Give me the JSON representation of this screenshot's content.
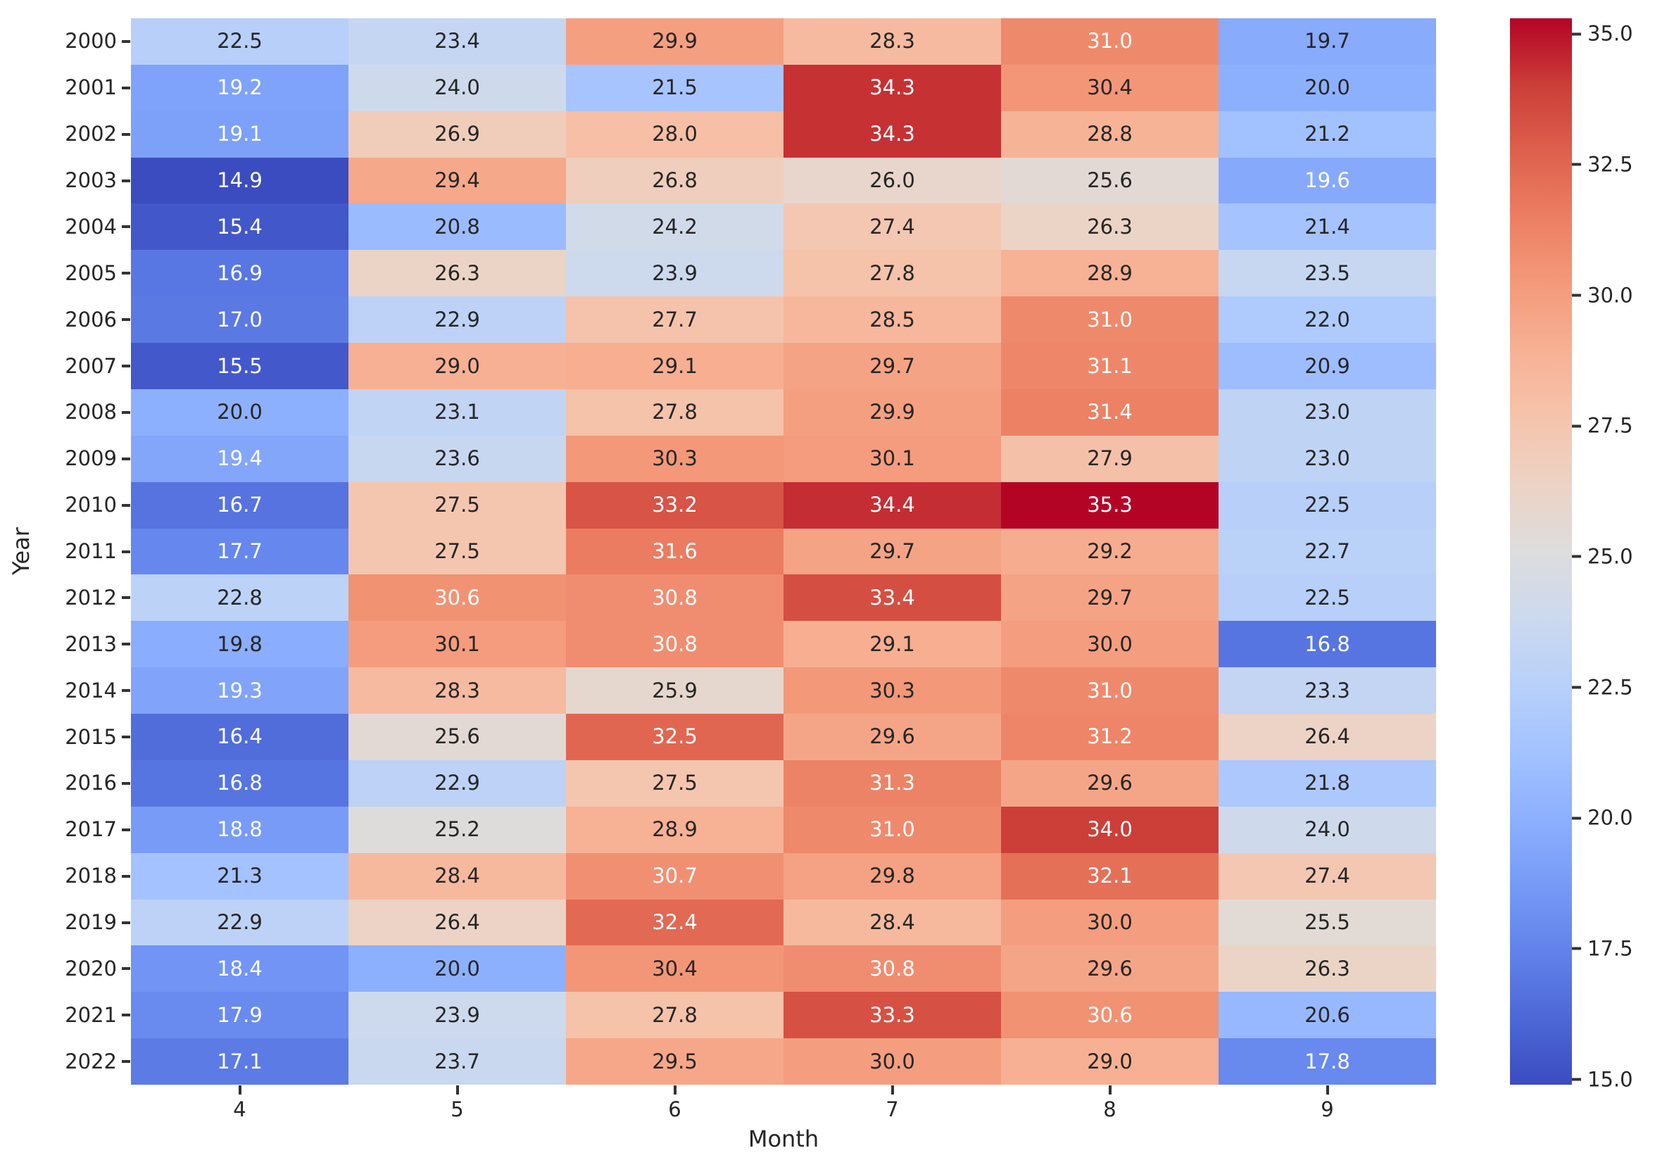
{
  "chart_data": {
    "type": "heatmap",
    "title": "",
    "xlabel": "Month",
    "ylabel": "Year",
    "x_categories": [
      "4",
      "5",
      "6",
      "7",
      "8",
      "9"
    ],
    "y_categories": [
      "2000",
      "2001",
      "2002",
      "2003",
      "2004",
      "2005",
      "2006",
      "2007",
      "2008",
      "2009",
      "2010",
      "2011",
      "2012",
      "2013",
      "2014",
      "2015",
      "2016",
      "2017",
      "2018",
      "2019",
      "2020",
      "2021",
      "2022"
    ],
    "values": [
      [
        22.5,
        23.4,
        29.9,
        28.3,
        31.0,
        19.7
      ],
      [
        19.2,
        24.0,
        21.5,
        34.3,
        30.4,
        20.0
      ],
      [
        19.1,
        26.9,
        28.0,
        34.3,
        28.8,
        21.2
      ],
      [
        14.9,
        29.4,
        26.8,
        26.0,
        25.6,
        19.6
      ],
      [
        15.4,
        20.8,
        24.2,
        27.4,
        26.3,
        21.4
      ],
      [
        16.9,
        26.3,
        23.9,
        27.8,
        28.9,
        23.5
      ],
      [
        17.0,
        22.9,
        27.7,
        28.5,
        31.0,
        22.0
      ],
      [
        15.5,
        29.0,
        29.1,
        29.7,
        31.1,
        20.9
      ],
      [
        20.0,
        23.1,
        27.8,
        29.9,
        31.4,
        23.0
      ],
      [
        19.4,
        23.6,
        30.3,
        30.1,
        27.9,
        23.0
      ],
      [
        16.7,
        27.5,
        33.2,
        34.4,
        35.3,
        22.5
      ],
      [
        17.7,
        27.5,
        31.6,
        29.7,
        29.2,
        22.7
      ],
      [
        22.8,
        30.6,
        30.8,
        33.4,
        29.7,
        22.5
      ],
      [
        19.8,
        30.1,
        30.8,
        29.1,
        30.0,
        16.8
      ],
      [
        19.3,
        28.3,
        25.9,
        30.3,
        31.0,
        23.3
      ],
      [
        16.4,
        25.6,
        32.5,
        29.6,
        31.2,
        26.4
      ],
      [
        16.8,
        22.9,
        27.5,
        31.3,
        29.6,
        21.8
      ],
      [
        18.8,
        25.2,
        28.9,
        31.0,
        34.0,
        24.0
      ],
      [
        21.3,
        28.4,
        30.7,
        29.8,
        32.1,
        27.4
      ],
      [
        22.9,
        26.4,
        32.4,
        28.4,
        30.0,
        25.5
      ],
      [
        18.4,
        20.0,
        30.4,
        30.8,
        29.6,
        26.3
      ],
      [
        17.9,
        23.9,
        27.8,
        33.3,
        30.6,
        20.6
      ],
      [
        17.1,
        23.7,
        29.5,
        30.0,
        29.0,
        17.8
      ]
    ],
    "vmin": 14.9,
    "vmax": 35.3,
    "colorbar_ticks": [
      35.0,
      32.5,
      30.0,
      27.5,
      25.0,
      22.5,
      20.0,
      17.5,
      15.0
    ],
    "colormap": "coolwarm",
    "colormap_stops": [
      [
        59,
        76,
        192
      ],
      [
        77,
        104,
        215
      ],
      [
        98,
        130,
        234
      ],
      [
        119,
        154,
        247
      ],
      [
        141,
        176,
        254
      ],
      [
        163,
        194,
        255
      ],
      [
        184,
        208,
        249
      ],
      [
        204,
        217,
        238
      ],
      [
        221,
        221,
        221
      ],
      [
        236,
        211,
        197
      ],
      [
        245,
        196,
        173
      ],
      [
        247,
        177,
        148
      ],
      [
        244,
        154,
        123
      ],
      [
        236,
        127,
        99
      ],
      [
        222,
        96,
        77
      ],
      [
        203,
        62,
        56
      ],
      [
        180,
        4,
        38
      ]
    ],
    "annotation_decimals": 1,
    "annot_dark_color": "#262626",
    "annot_light_color": "#ffffff",
    "tick_color": "#333333",
    "label_color": "#262626",
    "background": "#ffffff",
    "grid": false,
    "legend_position": "right-colorbar"
  }
}
